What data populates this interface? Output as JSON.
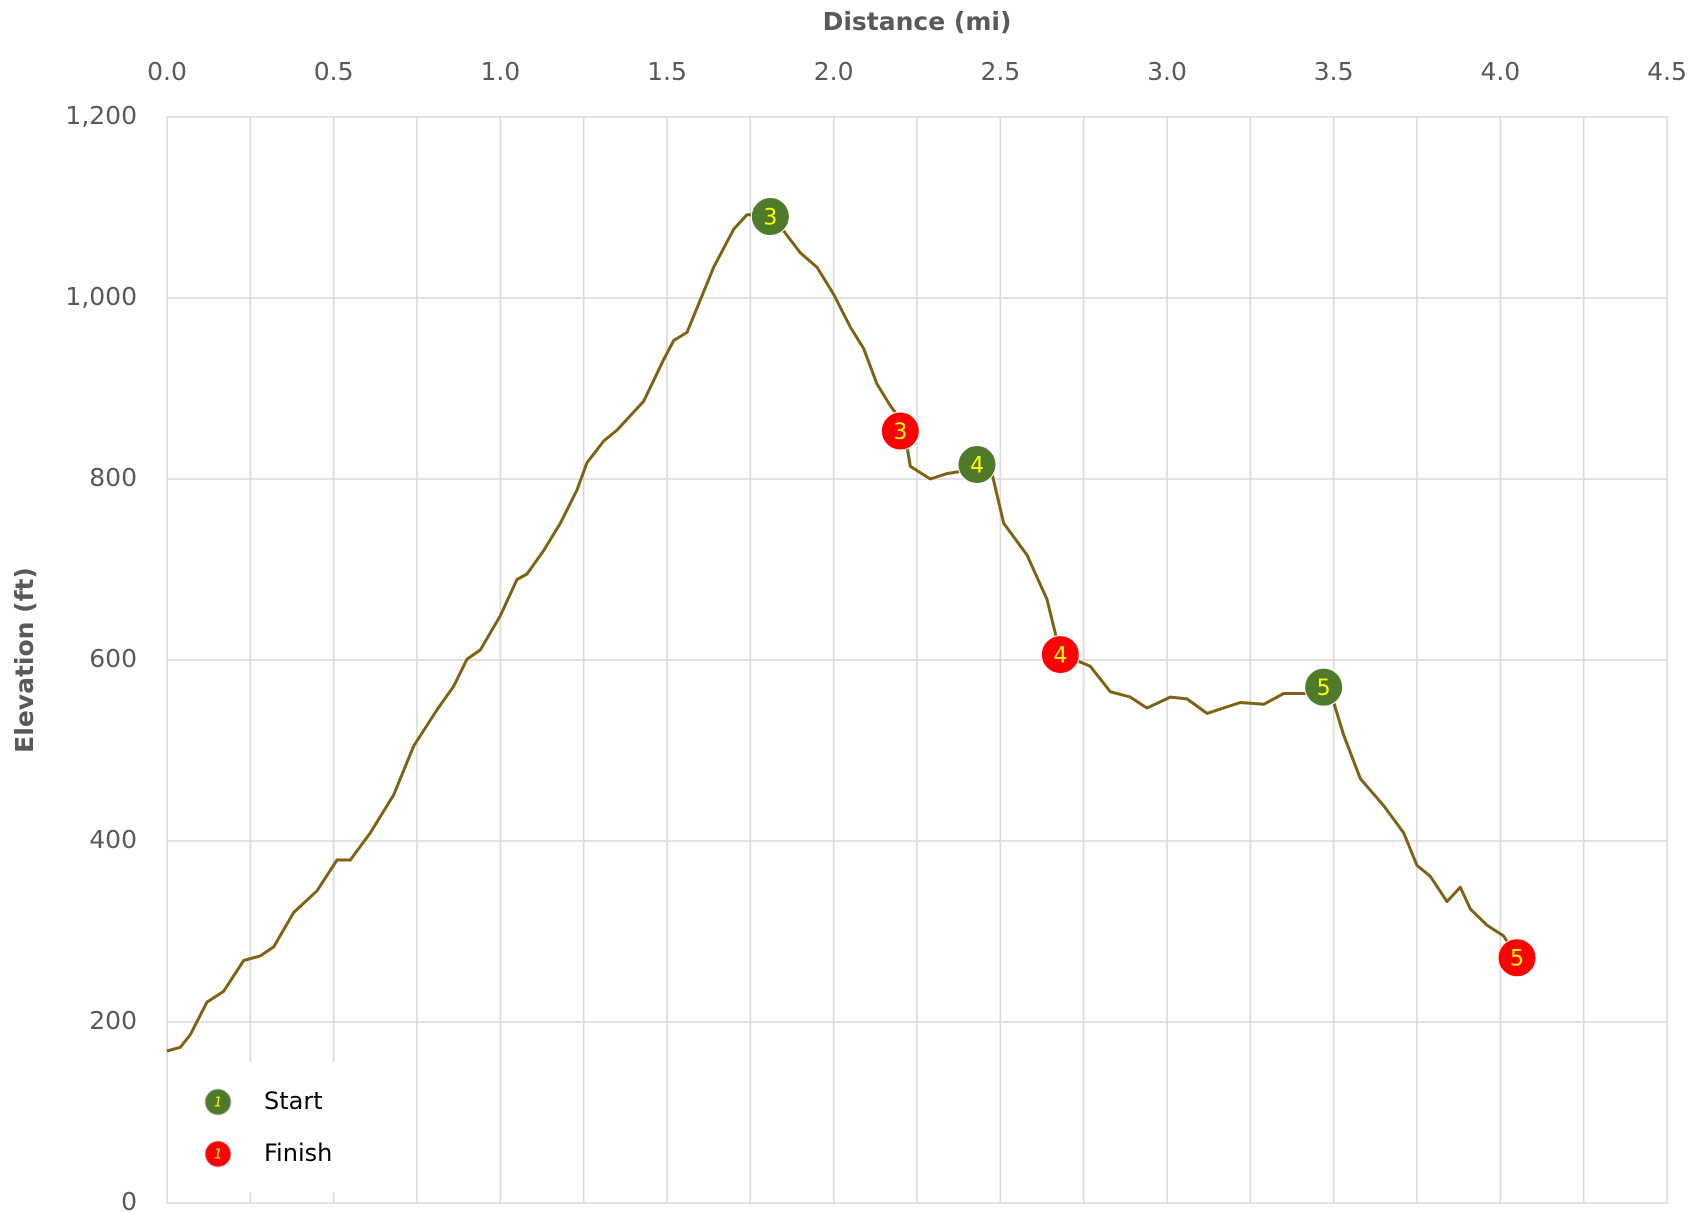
{
  "chart_data": {
    "type": "line",
    "x_title": "Distance (mi)",
    "y_title": "Elevation (ft)",
    "color": "#7f6112",
    "x": [
      0,
      0.04,
      0.07,
      0.12,
      0.17,
      0.23,
      0.28,
      0.32,
      0.38,
      0.45,
      0.51,
      0.55,
      0.61,
      0.68,
      0.74,
      0.81,
      0.86,
      0.9,
      0.94,
      1.0,
      1.05,
      1.08,
      1.13,
      1.18,
      1.23,
      1.26,
      1.31,
      1.35,
      1.43,
      1.49,
      1.52,
      1.56,
      1.64,
      1.7,
      1.74,
      1.81,
      1.85,
      1.9,
      1.95,
      2.0,
      2.05,
      2.09,
      2.13,
      2.17,
      2.2,
      2.22,
      2.23,
      2.29,
      2.34,
      2.39,
      2.43,
      2.47,
      2.51,
      2.58,
      2.64,
      2.68,
      2.77,
      2.83,
      2.89,
      2.94,
      3.01,
      3.06,
      3.12,
      3.22,
      3.29,
      3.35,
      3.42,
      3.47,
      3.5,
      3.53,
      3.58,
      3.65,
      3.71,
      3.75,
      3.79,
      3.84,
      3.88,
      3.91,
      3.96,
      4.01,
      4.05
    ],
    "values": [
      168,
      172,
      186,
      222,
      234,
      268,
      273,
      283,
      321,
      345,
      379,
      379,
      409,
      451,
      505,
      545,
      571,
      601,
      611,
      649,
      689,
      695,
      721,
      751,
      788,
      818,
      842,
      854,
      886,
      932,
      953,
      962,
      1034,
      1076,
      1092,
      1092,
      1074,
      1050,
      1034,
      1004,
      968,
      944,
      905,
      881,
      866,
      836,
      814,
      800,
      806,
      809,
      816,
      814,
      751,
      716,
      667,
      607,
      593,
      565,
      559,
      547,
      559,
      557,
      541,
      553,
      551,
      563,
      563,
      569,
      553,
      517,
      469,
      439,
      409,
      373,
      361,
      333,
      349,
      325,
      307,
      295,
      271
    ],
    "markers": [
      {
        "name": "Start",
        "color": "#4e7a2a",
        "text_color": "#ffff00",
        "x": [
          1.81,
          2.43,
          3.47
        ],
        "y": [
          1090,
          816,
          570
        ],
        "labels": [
          "3",
          "4",
          "5"
        ]
      },
      {
        "name": "Finish",
        "color": "#ff0000",
        "text_color": "#ffff00",
        "x": [
          2.2,
          2.68,
          4.05
        ],
        "y": [
          853,
          606,
          271
        ],
        "labels": [
          "3",
          "4",
          "5"
        ]
      }
    ],
    "legend_icon_label": "1",
    "legend": "lower left",
    "xlim": [
      0,
      4.5
    ],
    "xticks": [
      {
        "value": 0,
        "label": "0.0"
      },
      0.5,
      {
        "value": 1,
        "label": "1.0"
      },
      1.5,
      {
        "value": 2,
        "label": "2.0"
      },
      2.5,
      {
        "value": 3,
        "label": "3.0"
      },
      3.5,
      {
        "value": 4,
        "label": "4.0"
      },
      4.5
    ],
    "x_gridlines": [
      0,
      0.25,
      0.5,
      0.75,
      1,
      1.25,
      1.5,
      1.75,
      2,
      2.25,
      2.5,
      2.75,
      3,
      3.25,
      3.5,
      3.75,
      4,
      4.25,
      4.5
    ],
    "ylim": [
      0,
      1200
    ],
    "yticks": [
      0,
      200,
      400,
      600,
      800,
      {
        "value": 1000,
        "label": "1,000"
      },
      {
        "value": 1200,
        "label": "1,200"
      }
    ],
    "grid": true
  }
}
